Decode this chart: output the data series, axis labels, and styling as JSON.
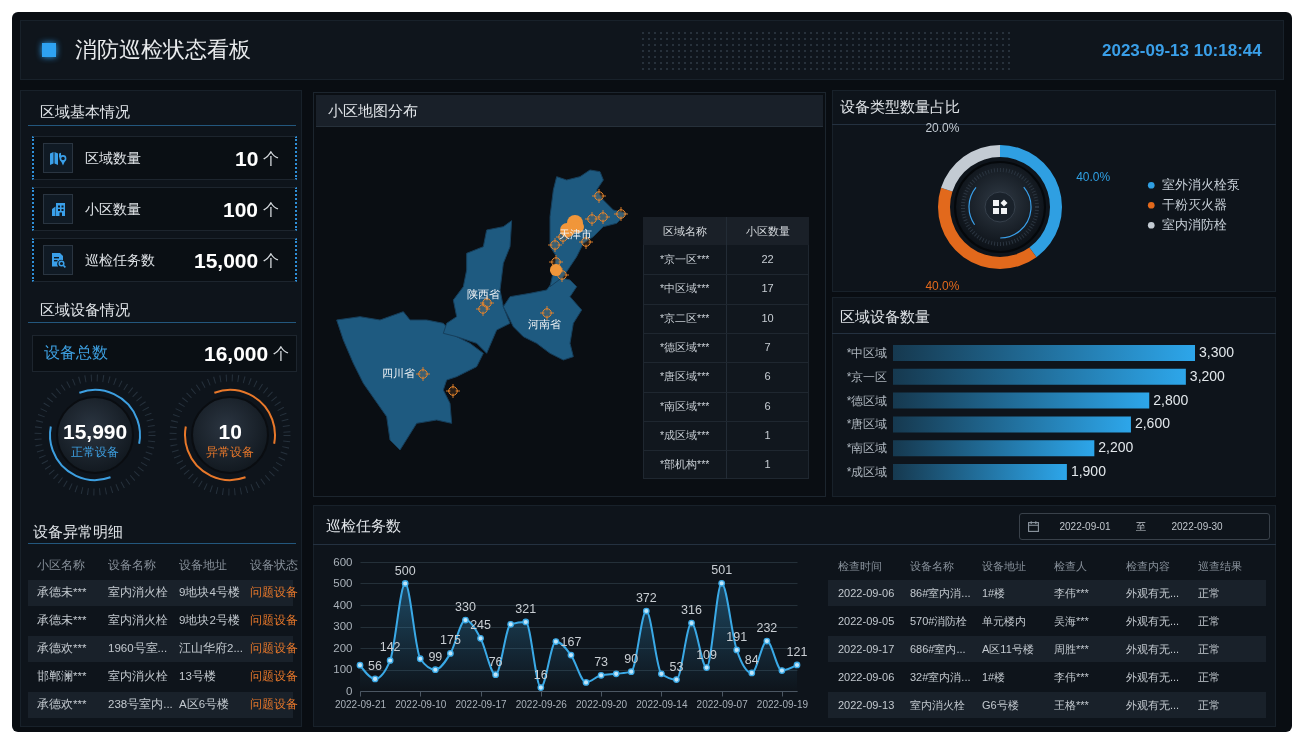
{
  "chart_data": [
    {
      "type": "other",
      "title": "消防巡检状态看板",
      "annotations": [
        "2023-09-13 10:18:44"
      ]
    },
    {
      "type": "other",
      "title": "区域基本情况",
      "categories": [
        "区域数量",
        "小区数量",
        "巡检任务数"
      ],
      "value_labels": [
        "10",
        "100",
        "15,000"
      ],
      "ylabel": "个"
    },
    {
      "type": "other",
      "title": "区域设备情况",
      "categories": [
        "设备总数",
        "正常设备",
        "异常设备"
      ],
      "value_labels": [
        "16,000",
        "15,990",
        "10"
      ],
      "ylabel": "个"
    },
    {
      "type": "other",
      "title": "设备异常明细",
      "categories": [
        "小区名称",
        "设备名称",
        "设备地址",
        "设备状态"
      ],
      "annotations": [
        "承德未***",
        "室内消火栓",
        "9地块4号楼",
        "问题设备",
        "承德未***",
        "室内消火栓",
        "9地块2号楼",
        "问题设备",
        "承德欢***",
        "1960号室...",
        "江山华府2...",
        "问题设备",
        "邯郸澜***",
        "室内消火栓",
        "13号楼",
        "问题设备",
        "承德欢***",
        "238号室内...",
        "A区6号楼",
        "问题设备"
      ]
    },
    {
      "type": "other",
      "title": "小区地图分布",
      "annotations": [
        "陕西省",
        "河南省",
        "四川省",
        "天津市"
      ],
      "xlabel": "区域名称",
      "ylabel": "小区数量",
      "categories": [
        "*京一区***",
        "*中区域***",
        "*京二区***",
        "*德区域***",
        "*唐区域***",
        "*南区域***",
        "*成区域***",
        "*部机构***"
      ],
      "value_labels": [
        "22",
        "17",
        "10",
        "7",
        "6",
        "6",
        "1",
        "1"
      ]
    },
    {
      "type": "donut",
      "title": "设备类型数量占比",
      "categories": [
        "室外消火栓泵",
        "干粉灭火器",
        "室内消防栓"
      ],
      "values": [
        40,
        40,
        20
      ],
      "value_labels": [
        "40.0%",
        "40.0%",
        "20.0%"
      ],
      "colors": [
        "#2f9fe2",
        "#e2691c",
        "#c3cbd3"
      ],
      "legend": "right"
    },
    {
      "type": "bar",
      "orientation": "horizontal",
      "title": "区域设备数量",
      "categories": [
        "*中区域",
        "*京一区",
        "*德区域",
        "*唐区域",
        "*南区域",
        "*成区域"
      ],
      "values": [
        3300,
        3200,
        2800,
        2600,
        2200,
        1900
      ],
      "value_labels": [
        "3,300",
        "3,200",
        "2,800",
        "2,600",
        "2,200",
        "1,900"
      ],
      "color": "#2da6ea",
      "tick_labels": "y"
    },
    {
      "type": "area",
      "title": "巡检任务数",
      "annotations": [
        "2022-09-01",
        "至",
        "2022-09-30"
      ],
      "categories": [
        "2022-09-21",
        null,
        null,
        null,
        "2022-09-10",
        null,
        null,
        null,
        "2022-09-17",
        null,
        null,
        null,
        "2022-09-26",
        null,
        null,
        null,
        "2022-09-20",
        null,
        null,
        null,
        "2022-09-14",
        null,
        null,
        null,
        "2022-09-07",
        null,
        null,
        null,
        "2022-09-19",
        null
      ],
      "values": [
        120,
        56,
        142,
        500,
        150,
        99,
        175,
        330,
        245,
        76,
        310,
        321,
        16,
        230,
        167,
        40,
        73,
        80,
        90,
        372,
        80,
        53,
        316,
        109,
        501,
        191,
        84,
        232,
        95,
        121
      ],
      "value_labels": [
        null,
        "56",
        "142",
        "500",
        null,
        "99",
        "175",
        "330",
        "245",
        "76",
        null,
        "321",
        "16",
        null,
        "167",
        null,
        "73",
        null,
        "90",
        "372",
        null,
        "53",
        "316",
        "109",
        "501",
        "191",
        "84",
        "232",
        null,
        "121"
      ],
      "color": "#3aa9e6",
      "ylim": [
        0,
        600
      ],
      "yticks": [
        0,
        100,
        200,
        300,
        400,
        500,
        600
      ],
      "grid": "y",
      "marker": "circle"
    },
    {
      "type": "other",
      "categories": [
        "检查时间",
        "设备名称",
        "设备地址",
        "检查人",
        "检查内容",
        "巡查结果"
      ],
      "annotations": [
        "2022-09-06",
        "86#室内消...",
        "1#楼",
        "李伟***",
        "外观有无...",
        "正常",
        "2022-09-05",
        "570#消防栓",
        "单元楼内",
        "吴海***",
        "外观有无...",
        "正常",
        "2022-09-17",
        "686#室内...",
        "A区11号楼",
        "周胜***",
        "外观有无...",
        "正常",
        "2022-09-06",
        "32#室内消...",
        "1#楼",
        "李伟***",
        "外观有无...",
        "正常",
        "2022-09-13",
        "室内消火栓",
        "G6号楼",
        "王格***",
        "外观有无...",
        "正常"
      ]
    }
  ]
}
